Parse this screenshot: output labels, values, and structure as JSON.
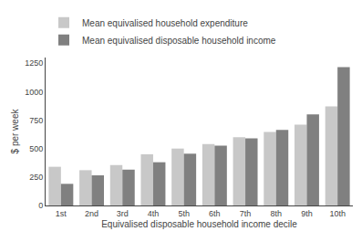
{
  "chart_data": {
    "type": "bar",
    "categories": [
      "1st",
      "2nd",
      "3rd",
      "4th",
      "5th",
      "6th",
      "7th",
      "8th",
      "9th",
      "10th"
    ],
    "series": [
      {
        "name": "Mean equivalised household expenditure",
        "color": "#c8c8c8",
        "values": [
          340,
          310,
          355,
          450,
          500,
          540,
          600,
          645,
          710,
          870
        ]
      },
      {
        "name": "Mean equivalised disposable household income",
        "color": "#808080",
        "values": [
          190,
          265,
          315,
          380,
          455,
          525,
          590,
          665,
          800,
          1215
        ]
      }
    ],
    "xlabel": "Equivalised disposable household income decile",
    "ylabel": "$ per week",
    "ylim": [
      0,
      1300
    ],
    "yticks": [
      0,
      250,
      500,
      750,
      1000,
      1250
    ],
    "grid": false,
    "legend": "top"
  }
}
